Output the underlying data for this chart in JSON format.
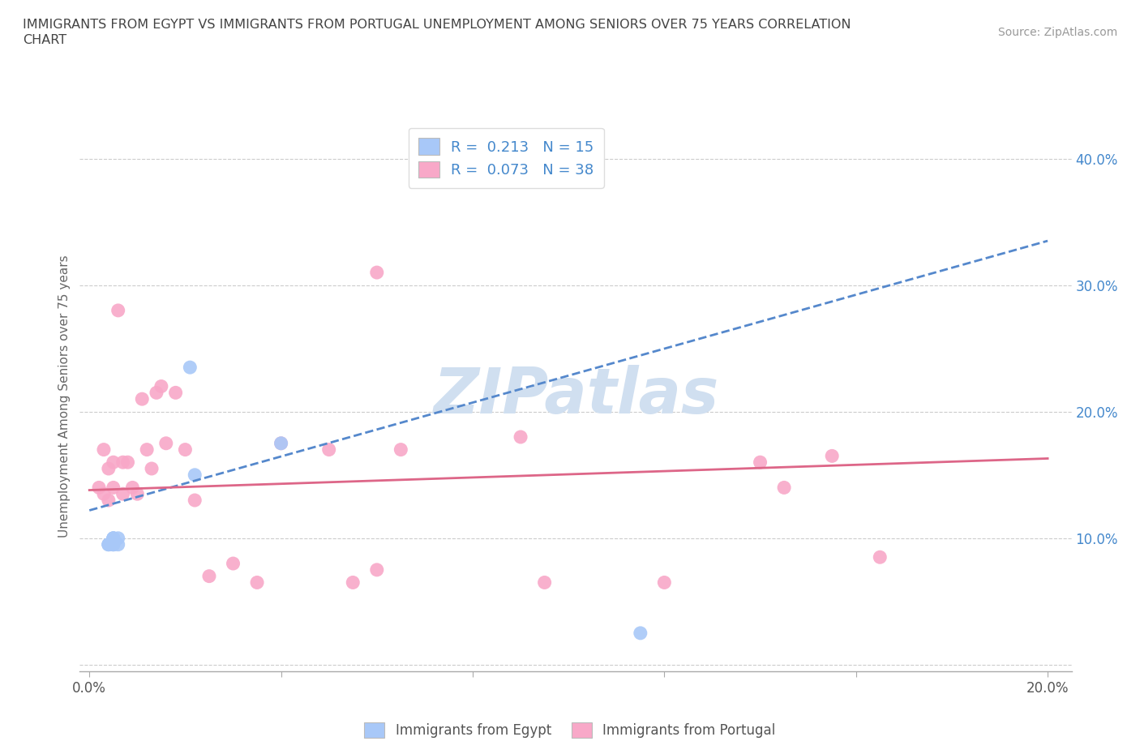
{
  "title_line1": "IMMIGRANTS FROM EGYPT VS IMMIGRANTS FROM PORTUGAL UNEMPLOYMENT AMONG SENIORS OVER 75 YEARS CORRELATION",
  "title_line2": "CHART",
  "source": "Source: ZipAtlas.com",
  "ylabel": "Unemployment Among Seniors over 75 years",
  "ytick_vals": [
    0.0,
    0.1,
    0.2,
    0.3,
    0.4
  ],
  "ytick_labels": [
    "",
    "10.0%",
    "20.0%",
    "30.0%",
    "40.0%"
  ],
  "xtick_vals": [
    0.0,
    0.04,
    0.08,
    0.12,
    0.16,
    0.2
  ],
  "xtick_labels": [
    "0.0%",
    "",
    "",
    "",
    "",
    "20.0%"
  ],
  "xlim": [
    -0.002,
    0.205
  ],
  "ylim": [
    -0.005,
    0.43
  ],
  "legend_egypt_R": "0.213",
  "legend_egypt_N": "15",
  "legend_portugal_R": "0.073",
  "legend_portugal_N": "38",
  "egypt_color": "#a8c8f8",
  "portugal_color": "#f8a8c8",
  "egypt_line_color": "#5588cc",
  "portugal_line_color": "#dd6688",
  "label_color": "#4488cc",
  "watermark_color": "#d0dff0",
  "egypt_scatter_x": [
    0.004,
    0.004,
    0.004,
    0.005,
    0.005,
    0.005,
    0.005,
    0.005,
    0.005,
    0.006,
    0.006,
    0.021,
    0.022,
    0.04,
    0.115
  ],
  "egypt_scatter_y": [
    0.095,
    0.095,
    0.095,
    0.095,
    0.1,
    0.1,
    0.095,
    0.1,
    0.095,
    0.1,
    0.095,
    0.235,
    0.15,
    0.175,
    0.025
  ],
  "portugal_scatter_x": [
    0.002,
    0.003,
    0.003,
    0.004,
    0.004,
    0.005,
    0.005,
    0.006,
    0.007,
    0.007,
    0.008,
    0.009,
    0.01,
    0.011,
    0.012,
    0.013,
    0.014,
    0.015,
    0.016,
    0.018,
    0.02,
    0.022,
    0.025,
    0.03,
    0.035,
    0.04,
    0.05,
    0.055,
    0.06,
    0.06,
    0.065,
    0.09,
    0.095,
    0.12,
    0.14,
    0.145,
    0.155,
    0.165
  ],
  "portugal_scatter_y": [
    0.14,
    0.17,
    0.135,
    0.155,
    0.13,
    0.14,
    0.16,
    0.28,
    0.16,
    0.135,
    0.16,
    0.14,
    0.135,
    0.21,
    0.17,
    0.155,
    0.215,
    0.22,
    0.175,
    0.215,
    0.17,
    0.13,
    0.07,
    0.08,
    0.065,
    0.175,
    0.17,
    0.065,
    0.075,
    0.31,
    0.17,
    0.18,
    0.065,
    0.065,
    0.16,
    0.14,
    0.165,
    0.085
  ],
  "egypt_trend_x": [
    0.0,
    0.2
  ],
  "egypt_trend_y": [
    0.122,
    0.335
  ],
  "portugal_trend_x": [
    0.0,
    0.2
  ],
  "portugal_trend_y": [
    0.138,
    0.163
  ]
}
